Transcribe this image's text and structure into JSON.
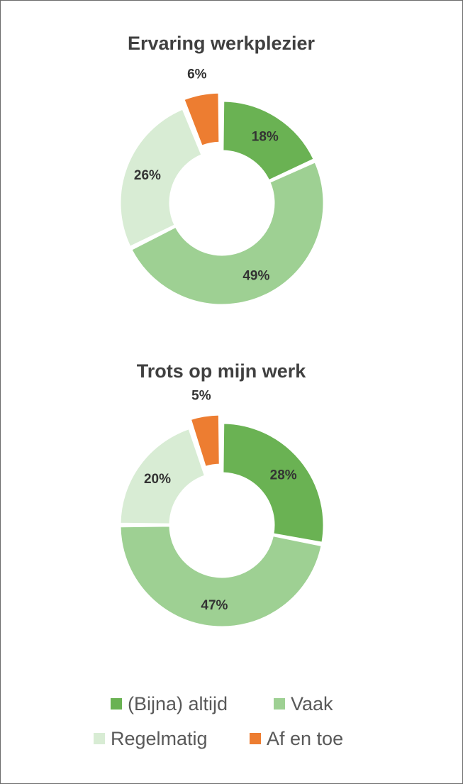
{
  "colors": {
    "altijd": "#6ab253",
    "vaak": "#9ed093",
    "regelmatig": "#d8ecd4",
    "af_en_toe": "#ed7d31"
  },
  "legend": [
    {
      "key": "altijd",
      "label": "(Bijna) altijd"
    },
    {
      "key": "vaak",
      "label": "Vaak"
    },
    {
      "key": "regelmatig",
      "label": "Regelmatig"
    },
    {
      "key": "af_en_toe",
      "label": "Af en toe"
    }
  ],
  "chart_data": [
    {
      "type": "pie",
      "variant": "doughnut",
      "title": "Ervaring werkplezier",
      "categories": [
        "(Bijna) altijd",
        "Vaak",
        "Regelmatig",
        "Af en toe"
      ],
      "values": [
        18,
        49,
        26,
        6
      ],
      "labels": [
        "18%",
        "49%",
        "26%",
        "6%"
      ],
      "exploded": "Af en toe"
    },
    {
      "type": "pie",
      "variant": "doughnut",
      "title": "Trots op mijn werk",
      "categories": [
        "(Bijna) altijd",
        "Vaak",
        "Regelmatig",
        "Af en toe"
      ],
      "values": [
        28,
        47,
        20,
        5
      ],
      "labels": [
        "28%",
        "47%",
        "20%",
        "5%"
      ],
      "exploded": "Af en toe"
    }
  ]
}
